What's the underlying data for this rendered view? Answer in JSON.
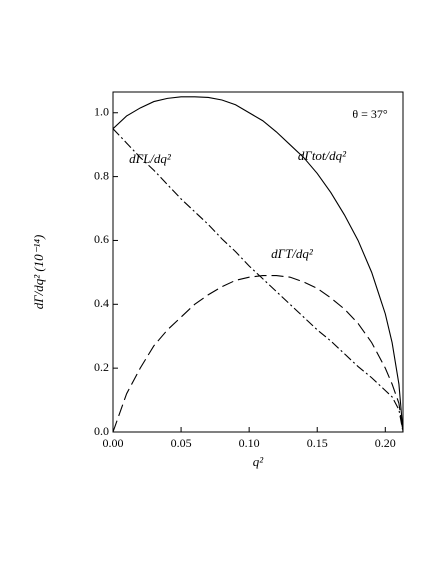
{
  "chart_data": {
    "type": "line",
    "x_label": "q²",
    "y_label": "dΓ/dq² (10⁻¹⁴)",
    "annotation": "θ = 37°",
    "x": [
      0,
      0.01,
      0.02,
      0.03,
      0.04,
      0.05,
      0.06,
      0.07,
      0.08,
      0.09,
      0.1,
      0.11,
      0.12,
      0.13,
      0.14,
      0.15,
      0.16,
      0.17,
      0.18,
      0.19,
      0.2,
      0.205,
      0.21,
      0.213
    ],
    "series": [
      {
        "name": "dΓtot/dq²",
        "color": "#000000",
        "dash": "solid",
        "values": [
          0.95,
          0.99,
          1.015,
          1.035,
          1.045,
          1.05,
          1.05,
          1.048,
          1.04,
          1.025,
          1.0,
          0.975,
          0.94,
          0.9,
          0.86,
          0.81,
          0.75,
          0.68,
          0.6,
          0.5,
          0.37,
          0.28,
          0.15,
          0
        ]
      },
      {
        "name": "dΓL/dq²",
        "color": "#000000",
        "dash": "dashdot",
        "values": [
          0.95,
          0.905,
          0.86,
          0.82,
          0.775,
          0.73,
          0.69,
          0.65,
          0.605,
          0.565,
          0.52,
          0.48,
          0.44,
          0.4,
          0.36,
          0.32,
          0.285,
          0.245,
          0.205,
          0.17,
          0.13,
          0.11,
          0.07,
          0
        ]
      },
      {
        "name": "dΓT/dq²",
        "color": "#000000",
        "dash": "dashed",
        "values": [
          0,
          0.12,
          0.2,
          0.27,
          0.32,
          0.36,
          0.4,
          0.43,
          0.455,
          0.475,
          0.485,
          0.49,
          0.49,
          0.485,
          0.47,
          0.45,
          0.42,
          0.385,
          0.34,
          0.28,
          0.2,
          0.15,
          0.09,
          0
        ]
      }
    ],
    "xlim": [
      0,
      0.213
    ],
    "ylim": [
      0,
      1.065
    ],
    "xticks": [
      {
        "value": 0,
        "label": "0.00"
      },
      {
        "value": 0.05,
        "label": "0.05"
      },
      {
        "value": 0.1,
        "label": "0.10"
      },
      {
        "value": 0.15,
        "label": "0.15"
      },
      {
        "value": 0.2,
        "label": "0.20"
      }
    ],
    "yticks": [
      {
        "value": 0,
        "label": "0.0"
      },
      {
        "value": 0.2,
        "label": "0.2"
      },
      {
        "value": 0.4,
        "label": "0.4"
      },
      {
        "value": 0.6,
        "label": "0.6"
      },
      {
        "value": 0.8,
        "label": "0.8"
      },
      {
        "value": 1.0,
        "label": "1.0"
      }
    ]
  }
}
